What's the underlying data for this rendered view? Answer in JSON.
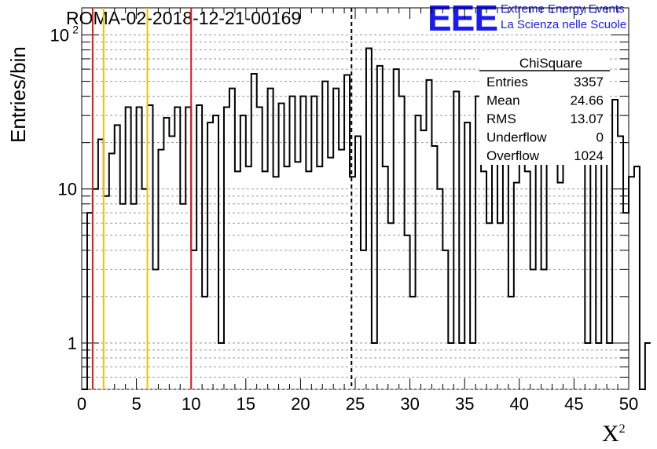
{
  "title": "ROMA-02-2018-12-21-00169",
  "logo": {
    "mark": "EEE",
    "line1": "Extreme Energy Events",
    "line2": "La Scienza nelle Scuole",
    "color": "#1b1bf0"
  },
  "stats": {
    "title": "ChiSquare",
    "rows": [
      {
        "label": "Entries",
        "value": "3357"
      },
      {
        "label": "Mean",
        "value": "24.66"
      },
      {
        "label": "RMS",
        "value": "13.07"
      },
      {
        "label": "Underflow",
        "value": "0"
      },
      {
        "label": "Overflow",
        "value": "1024"
      }
    ]
  },
  "chart_data": {
    "type": "bar",
    "histogram": true,
    "title": "ROMA-02-2018-12-21-00169",
    "xlabel": "X",
    "xlabel_sup": "2",
    "ylabel": "Entries/bin",
    "xlim": [
      0,
      50
    ],
    "ylim": [
      0.5,
      150
    ],
    "log_y": true,
    "grid": true,
    "bin_width": 0.5,
    "bin_start": 0,
    "values": [
      0,
      7,
      10,
      21,
      9,
      17,
      26,
      8,
      34,
      8,
      34,
      10,
      35,
      3,
      18,
      29,
      22,
      34,
      8,
      34,
      4,
      35,
      2,
      27,
      30,
      1,
      34,
      45,
      13,
      30,
      14,
      56,
      34,
      13,
      45,
      12,
      36,
      14,
      40,
      15,
      40,
      13,
      40,
      14,
      50,
      16,
      45,
      18,
      55,
      12,
      22,
      4,
      82,
      1,
      63,
      14,
      6,
      60,
      40,
      5,
      2,
      30,
      24,
      51,
      19,
      10,
      4,
      1,
      43,
      1,
      27,
      1,
      40,
      13,
      6,
      34,
      6,
      40,
      2,
      11,
      36,
      13,
      3,
      40,
      3,
      60,
      40,
      11,
      23,
      60,
      60,
      30,
      1,
      40,
      1,
      60,
      1,
      38,
      22,
      7,
      12,
      14,
      0,
      1
    ],
    "vlines": [
      {
        "x": 1,
        "color": "#e41a1a",
        "style": "solid"
      },
      {
        "x": 2,
        "color": "#f2c200",
        "style": "solid"
      },
      {
        "x": 6,
        "color": "#f2c200",
        "style": "solid"
      },
      {
        "x": 10,
        "color": "#e41a1a",
        "style": "solid"
      },
      {
        "x": 24.66,
        "color": "#000000",
        "style": "dashed"
      }
    ],
    "xticks": [
      "0",
      "5",
      "10",
      "15",
      "20",
      "25",
      "30",
      "35",
      "40",
      "45",
      "50"
    ],
    "yticks": [
      {
        "value": 1,
        "label": "1"
      },
      {
        "value": 10,
        "label": "10"
      },
      {
        "value": 100,
        "label": "10",
        "sup": "2"
      }
    ]
  }
}
